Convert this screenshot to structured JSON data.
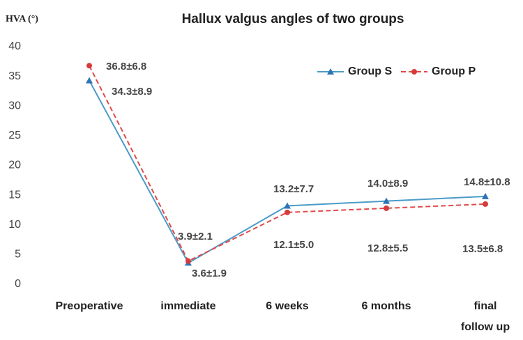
{
  "chart_data": {
    "type": "line",
    "title": "Hallux valgus angles of two groups",
    "y_label": "HVA (°)",
    "categories": [
      "Preoperative",
      "immediate",
      "6 weeks",
      "6 months",
      "final follow up"
    ],
    "series": [
      {
        "name": "Group S",
        "color": "#4a9cc8",
        "marker_color": "#2e74b5",
        "dashed": false,
        "marker": "triangle",
        "values": [
          34.3,
          3.6,
          13.2,
          14.0,
          14.8
        ],
        "value_labels": [
          "34.3±8.9",
          "3.6±1.9",
          "13.2±7.7",
          "14.0±8.9",
          "14.8±10.8"
        ]
      },
      {
        "name": "Group P",
        "color": "#e04a4a",
        "marker_color": "#d63a3a",
        "dashed": true,
        "marker": "circle",
        "values": [
          36.8,
          3.9,
          12.1,
          12.8,
          13.5
        ],
        "value_labels": [
          "36.8±6.8",
          "3.9±2.1",
          "12.1±5.0",
          "12.8±5.5",
          "13.5±6.8"
        ]
      }
    ],
    "ylim": [
      0,
      40
    ],
    "yticks": [
      0,
      5,
      10,
      15,
      20,
      25,
      30,
      35,
      40
    ],
    "grid": false,
    "legend": "top-right"
  }
}
